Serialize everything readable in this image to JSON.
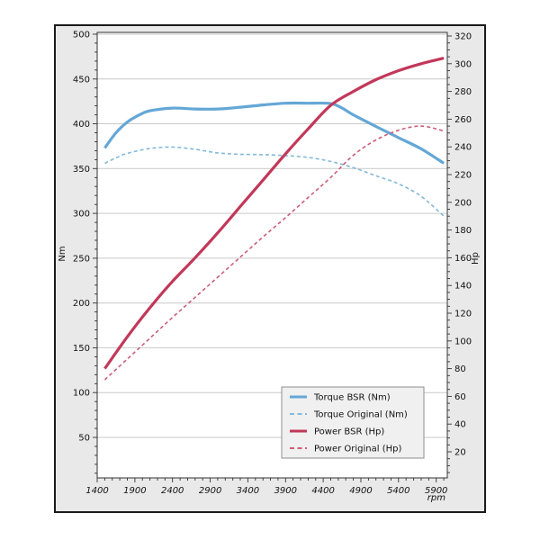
{
  "chart_data": {
    "type": "line",
    "title": "",
    "x": {
      "label": "rpm",
      "min": 1400,
      "max": 6047,
      "major_ticks": [
        1400,
        1900,
        2400,
        2900,
        3400,
        3900,
        4400,
        4900,
        5400,
        5900
      ],
      "minor_step": 100
    },
    "y_left": {
      "label": "Nm",
      "min": 4.8,
      "max": 502,
      "major_ticks": [
        50,
        100,
        150,
        200,
        250,
        300,
        350,
        400,
        450,
        500
      ],
      "minor_step": 10,
      "gridlines": true
    },
    "y_right": {
      "label": "Hp",
      "min": 1.2,
      "max": 322.6,
      "major_ticks": [
        20,
        40,
        60,
        80,
        100,
        120,
        140,
        160,
        180,
        200,
        220,
        240,
        260,
        280,
        300,
        320
      ],
      "minor_step": 5,
      "gridlines": false
    },
    "series": [
      {
        "name": "Torque BSR (Nm)",
        "axis": "left",
        "line": "solid",
        "color": "#64a7d6",
        "points": [
          [
            1500,
            373
          ],
          [
            1650,
            390
          ],
          [
            1800,
            402
          ],
          [
            1950,
            409.5
          ],
          [
            2100,
            414.5
          ],
          [
            2400,
            417.5
          ],
          [
            2700,
            416.5
          ],
          [
            3000,
            416.5
          ],
          [
            3300,
            418.5
          ],
          [
            3600,
            421
          ],
          [
            3900,
            423
          ],
          [
            4200,
            423
          ],
          [
            4500,
            422.5
          ],
          [
            4650,
            417.5
          ],
          [
            4800,
            410
          ],
          [
            5100,
            397
          ],
          [
            5400,
            384.5
          ],
          [
            5700,
            372
          ],
          [
            6000,
            356
          ]
        ]
      },
      {
        "name": "Torque Original (Nm)",
        "axis": "left",
        "line": "dashed",
        "color": "#82b9da",
        "points": [
          [
            1500,
            356
          ],
          [
            1650,
            362
          ],
          [
            1800,
            367
          ],
          [
            2100,
            372.5
          ],
          [
            2400,
            374
          ],
          [
            2700,
            371.5
          ],
          [
            3000,
            367.5
          ],
          [
            3300,
            366
          ],
          [
            3600,
            365.5
          ],
          [
            3900,
            364.5
          ],
          [
            4200,
            362.5
          ],
          [
            4500,
            358
          ],
          [
            4800,
            351
          ],
          [
            5100,
            342
          ],
          [
            5400,
            333
          ],
          [
            5700,
            319
          ],
          [
            6000,
            297
          ]
        ]
      },
      {
        "name": "Power BSR (Hp)",
        "axis": "right",
        "line": "solid",
        "color": "#c2385a",
        "points": [
          [
            1500,
            80
          ],
          [
            1800,
            103
          ],
          [
            2100,
            124
          ],
          [
            2400,
            143
          ],
          [
            2700,
            160
          ],
          [
            3000,
            178
          ],
          [
            3300,
            197
          ],
          [
            3600,
            216
          ],
          [
            3900,
            235
          ],
          [
            4200,
            253
          ],
          [
            4500,
            270
          ],
          [
            4800,
            280
          ],
          [
            5100,
            288.5
          ],
          [
            5400,
            295
          ],
          [
            5700,
            300
          ],
          [
            6000,
            304
          ]
        ]
      },
      {
        "name": "Power Original (Hp)",
        "axis": "right",
        "line": "dashed",
        "color": "#cb5e79",
        "points": [
          [
            1500,
            72
          ],
          [
            1800,
            87
          ],
          [
            2100,
            102
          ],
          [
            2400,
            117
          ],
          [
            2700,
            131.5
          ],
          [
            3000,
            146
          ],
          [
            3300,
            160.5
          ],
          [
            3600,
            175
          ],
          [
            3900,
            189
          ],
          [
            4200,
            203.5
          ],
          [
            4500,
            218
          ],
          [
            4800,
            234
          ],
          [
            5100,
            245
          ],
          [
            5400,
            252
          ],
          [
            5700,
            255
          ],
          [
            6000,
            251.5
          ]
        ]
      }
    ],
    "legend": {
      "position": "bottom-right"
    },
    "colors": {
      "outer_bg": "#e9e9e9",
      "outer_border": "#1a1a1a",
      "plot_bg": "#ffffff",
      "grid": "#c9c9c9",
      "spine": "#333333",
      "tick": "#333333",
      "text": "#111111",
      "legend_bg": "#f0f0f0",
      "legend_border": "#8f8f8f"
    }
  }
}
